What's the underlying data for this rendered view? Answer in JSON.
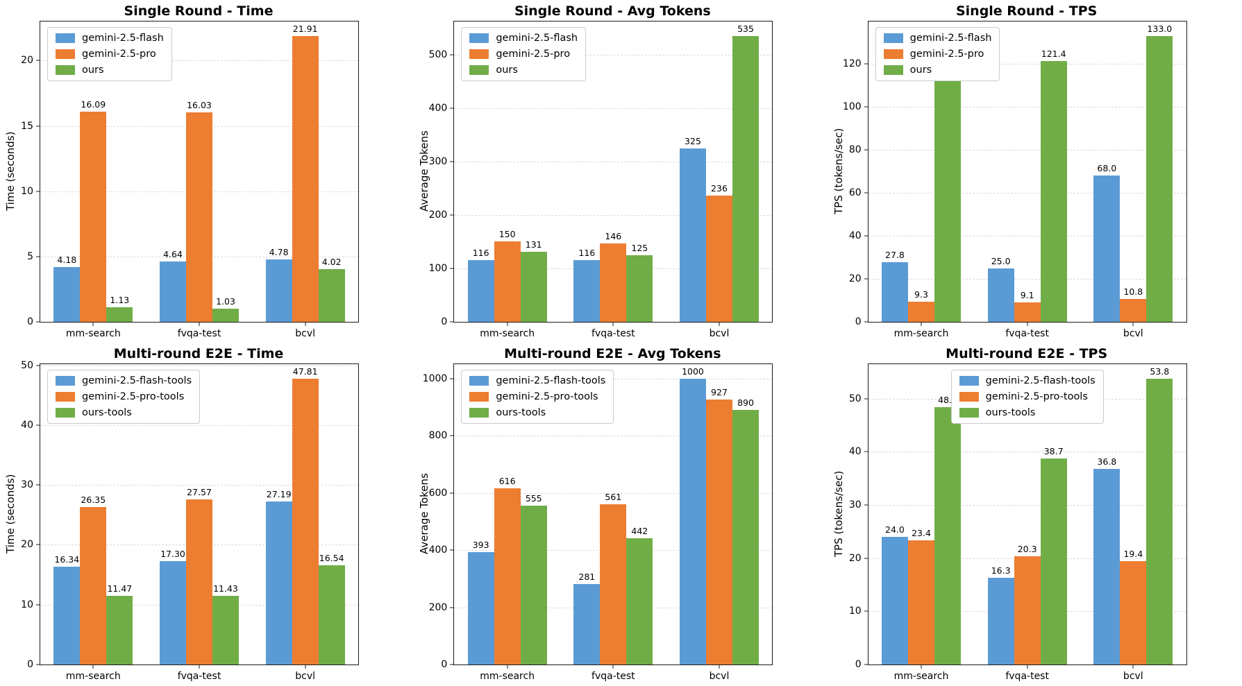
{
  "chart_data": [
    {
      "type": "bar",
      "title": "Single Round - Time",
      "ylabel": "Time (seconds)",
      "categories": [
        "mm-search",
        "fvqa-test",
        "bcvl"
      ],
      "ylim": [
        0,
        23.0
      ],
      "yticks": [
        0,
        5,
        10,
        15,
        20
      ],
      "grid": "dashed-horizontal",
      "legend_position": "upper-left",
      "series": [
        {
          "name": "gemini-2.5-flash",
          "color": "#5b9bd5",
          "values": [
            4.18,
            4.64,
            4.78
          ],
          "labels": [
            "4.18",
            "4.64",
            "4.78"
          ]
        },
        {
          "name": "gemini-2.5-pro",
          "color": "#ed7d31",
          "values": [
            16.09,
            16.03,
            21.91
          ],
          "labels": [
            "16.09",
            "16.03",
            "21.91"
          ]
        },
        {
          "name": "ours",
          "color": "#70ad47",
          "values": [
            1.13,
            1.03,
            4.02
          ],
          "labels": [
            "1.13",
            "1.03",
            "4.02"
          ]
        }
      ]
    },
    {
      "type": "bar",
      "title": "Single Round - Avg Tokens",
      "ylabel": "Average Tokens",
      "categories": [
        "mm-search",
        "fvqa-test",
        "bcvl"
      ],
      "ylim": [
        0,
        561.8
      ],
      "yticks": [
        0,
        100,
        200,
        300,
        400,
        500
      ],
      "grid": "dashed-horizontal",
      "legend_position": "upper-left",
      "series": [
        {
          "name": "gemini-2.5-flash",
          "color": "#5b9bd5",
          "values": [
            116,
            116,
            325
          ],
          "labels": [
            "116",
            "116",
            "325"
          ]
        },
        {
          "name": "gemini-2.5-pro",
          "color": "#ed7d31",
          "values": [
            150,
            146,
            236
          ],
          "labels": [
            "150",
            "146",
            "236"
          ]
        },
        {
          "name": "ours",
          "color": "#70ad47",
          "values": [
            131,
            125,
            535
          ],
          "labels": [
            "131",
            "125",
            "535"
          ]
        }
      ]
    },
    {
      "type": "bar",
      "title": "Single Round - TPS",
      "ylabel": "TPS (tokens/sec)",
      "categories": [
        "mm-search",
        "fvqa-test",
        "bcvl"
      ],
      "ylim": [
        0,
        139.7
      ],
      "yticks": [
        0,
        20,
        40,
        60,
        80,
        100,
        120
      ],
      "grid": "dashed-horizontal",
      "legend_position": "upper-left",
      "series": [
        {
          "name": "gemini-2.5-flash",
          "color": "#5b9bd5",
          "values": [
            27.8,
            25.0,
            68.0
          ],
          "labels": [
            "27.8",
            "25.0",
            "68.0"
          ]
        },
        {
          "name": "gemini-2.5-pro",
          "color": "#ed7d31",
          "values": [
            9.3,
            9.1,
            10.8
          ],
          "labels": [
            "9.3",
            "9.1",
            "10.8"
          ]
        },
        {
          "name": "ours",
          "color": "#70ad47",
          "values": [
            115.9,
            121.4,
            133.0
          ],
          "labels": [
            "115.9",
            "121.4",
            "133.0"
          ]
        }
      ]
    },
    {
      "type": "bar",
      "title": "Multi-round E2E - Time",
      "ylabel": "Time (seconds)",
      "categories": [
        "mm-search",
        "fvqa-test",
        "bcvl"
      ],
      "ylim": [
        0,
        50.2
      ],
      "yticks": [
        0,
        10,
        20,
        30,
        40,
        50
      ],
      "grid": "dashed-horizontal",
      "legend_position": "upper-left",
      "series": [
        {
          "name": "gemini-2.5-flash-tools",
          "color": "#5b9bd5",
          "values": [
            16.34,
            17.3,
            27.19
          ],
          "labels": [
            "16.34",
            "17.30",
            "27.19"
          ]
        },
        {
          "name": "gemini-2.5-pro-tools",
          "color": "#ed7d31",
          "values": [
            26.35,
            27.57,
            47.81
          ],
          "labels": [
            "26.35",
            "27.57",
            "47.81"
          ]
        },
        {
          "name": "ours-tools",
          "color": "#70ad47",
          "values": [
            11.47,
            11.43,
            16.54
          ],
          "labels": [
            "11.47",
            "11.43",
            "16.54"
          ]
        }
      ]
    },
    {
      "type": "bar",
      "title": "Multi-round E2E - Avg Tokens",
      "ylabel": "Average Tokens",
      "categories": [
        "mm-search",
        "fvqa-test",
        "bcvl"
      ],
      "ylim": [
        0,
        1050
      ],
      "yticks": [
        0,
        200,
        400,
        600,
        800,
        1000
      ],
      "grid": "dashed-horizontal",
      "legend_position": "upper-left",
      "series": [
        {
          "name": "gemini-2.5-flash-tools",
          "color": "#5b9bd5",
          "values": [
            393,
            281,
            1000
          ],
          "labels": [
            "393",
            "281",
            "1000"
          ]
        },
        {
          "name": "gemini-2.5-pro-tools",
          "color": "#ed7d31",
          "values": [
            616,
            561,
            927
          ],
          "labels": [
            "616",
            "561",
            "927"
          ]
        },
        {
          "name": "ours-tools",
          "color": "#70ad47",
          "values": [
            555,
            442,
            890
          ],
          "labels": [
            "555",
            "442",
            "890"
          ]
        }
      ]
    },
    {
      "type": "bar",
      "title": "Multi-round E2E - TPS",
      "ylabel": "TPS (tokens/sec)",
      "categories": [
        "mm-search",
        "fvqa-test",
        "bcvl"
      ],
      "ylim": [
        0,
        56.5
      ],
      "yticks": [
        0,
        10,
        20,
        30,
        40,
        50
      ],
      "grid": "dashed-horizontal",
      "legend_position": "upper-center",
      "series": [
        {
          "name": "gemini-2.5-flash-tools",
          "color": "#5b9bd5",
          "values": [
            24.0,
            16.3,
            36.8
          ],
          "labels": [
            "24.0",
            "16.3",
            "36.8"
          ]
        },
        {
          "name": "gemini-2.5-pro-tools",
          "color": "#ed7d31",
          "values": [
            23.4,
            20.3,
            19.4
          ],
          "labels": [
            "23.4",
            "20.3",
            "19.4"
          ]
        },
        {
          "name": "ours-tools",
          "color": "#70ad47",
          "values": [
            48.4,
            38.7,
            53.8
          ],
          "labels": [
            "48.4",
            "38.7",
            "53.8"
          ]
        }
      ]
    }
  ]
}
